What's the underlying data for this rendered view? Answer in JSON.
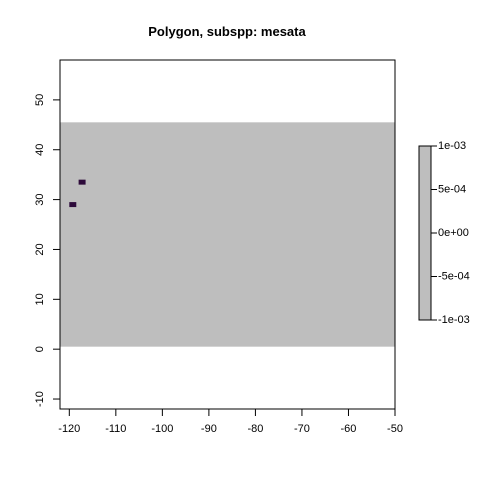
{
  "chart_data": {
    "type": "heatmap",
    "title": "Polygon, subspp: mesata",
    "xlabel": "",
    "ylabel": "",
    "xlim": [
      -122,
      -50
    ],
    "ylim": [
      -12,
      58
    ],
    "x_ticks": [
      -120,
      -110,
      -100,
      -90,
      -80,
      -70,
      -60,
      -50
    ],
    "y_ticks": [
      -10,
      0,
      10,
      20,
      30,
      40,
      50
    ],
    "raster_extent": {
      "x": [
        -122,
        -50
      ],
      "y": [
        0.5,
        45.5
      ]
    },
    "raster_fill_color": "#bebebe",
    "cells": [
      {
        "x": [
          -118,
          -116.5
        ],
        "y": [
          33,
          34
        ],
        "color": "#2d0a3a"
      },
      {
        "x": [
          -120,
          -118.5
        ],
        "y": [
          28.5,
          29.5
        ],
        "color": "#2d0a3a"
      }
    ],
    "legend": {
      "placement": "right",
      "ticks": [
        "1e-03",
        "5e-04",
        "0e+00",
        "-5e-04",
        "-1e-03"
      ],
      "fill_color": "#bebebe"
    },
    "grid": false
  }
}
